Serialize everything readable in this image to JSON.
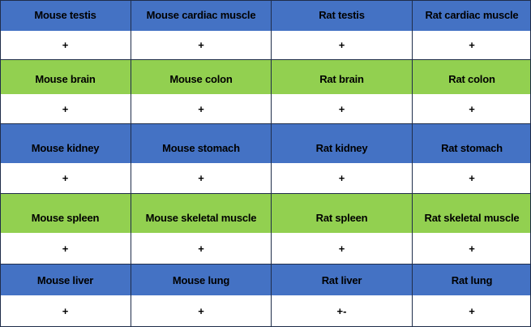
{
  "colors": {
    "blue": "#4472C4",
    "green": "#92D050",
    "white": "#FFFFFF"
  },
  "groups": [
    {
      "color": "blue",
      "labels": [
        "Mouse testis",
        "Mouse cardiac muscle",
        "Rat testis",
        "Rat cardiac muscle"
      ],
      "values": [
        "+",
        "+",
        "+",
        "+"
      ]
    },
    {
      "color": "green",
      "labels": [
        "Mouse brain",
        "Mouse colon",
        "Rat brain",
        "Rat colon"
      ],
      "values": [
        "+",
        "+",
        "+",
        "+"
      ]
    },
    {
      "color": "blue",
      "labels": [
        "Mouse kidney",
        "Mouse stomach",
        "Rat kidney",
        "Rat stomach"
      ],
      "values": [
        "+",
        "+",
        "+",
        "+"
      ]
    },
    {
      "color": "green",
      "labels": [
        "Mouse spleen",
        "Mouse skeletal muscle",
        "Rat spleen",
        "Rat skeletal muscle"
      ],
      "values": [
        "+",
        "+",
        "+",
        "+"
      ]
    },
    {
      "color": "blue",
      "labels": [
        "Mouse liver",
        "Mouse lung",
        "Rat liver",
        "Rat lung"
      ],
      "values": [
        "+",
        "+",
        "+-",
        "+"
      ]
    }
  ]
}
